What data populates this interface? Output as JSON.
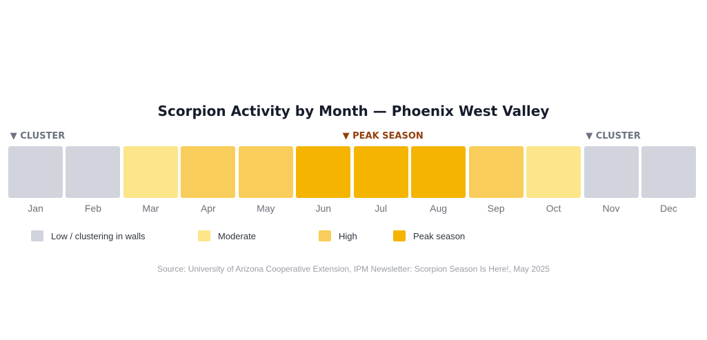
{
  "chart_data": {
    "type": "heatmap",
    "title": "Scorpion Activity by Month — Phoenix West Valley",
    "categories": [
      "Jan",
      "Feb",
      "Mar",
      "Apr",
      "May",
      "Jun",
      "Jul",
      "Aug",
      "Sep",
      "Oct",
      "Nov",
      "Dec"
    ],
    "levels": [
      "Low / clustering in walls",
      "Low / clustering in walls",
      "Moderate",
      "High",
      "High",
      "Peak season",
      "Peak season",
      "Peak season",
      "High",
      "Moderate",
      "Low / clustering in walls",
      "Low / clustering in walls"
    ],
    "legend": [
      {
        "label": "Low / clustering in walls",
        "color": "#d1d4dc"
      },
      {
        "label": "Moderate",
        "color": "#fde589"
      },
      {
        "label": "High",
        "color": "#f9cd5b"
      },
      {
        "label": "Peak season",
        "color": "#f4b400"
      }
    ],
    "legend_placement": "bottom",
    "annotations": [
      {
        "text": "▼ CLUSTER",
        "month": "Jan",
        "color": "#6b7280"
      },
      {
        "text": "▼ PEAK SEASON",
        "month": "Jul",
        "color": "#92400e"
      },
      {
        "text": "▼ CLUSTER",
        "month": "Nov",
        "color": "#6b7280"
      }
    ],
    "source": "Source: University of Arizona Cooperative Extension, IPM Newsletter: Scorpion Season Is Here!, May 2025"
  }
}
